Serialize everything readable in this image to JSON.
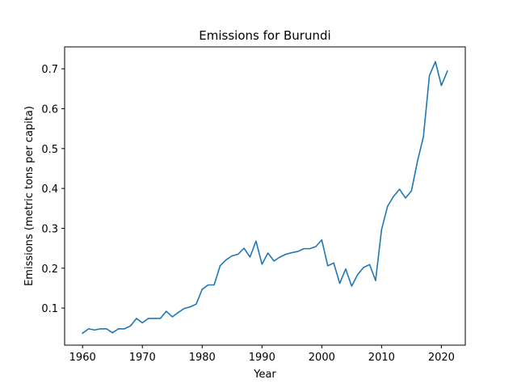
{
  "chart_data": {
    "type": "line",
    "title": "Emissions for Burundi",
    "xlabel": "Year",
    "ylabel": "Emissions (metric tons per capita)",
    "xlim": [
      1957,
      2024
    ],
    "ylim": [
      0.007,
      0.755
    ],
    "xticks": [
      1960,
      1970,
      1980,
      1990,
      2000,
      2010,
      2020
    ],
    "yticks": [
      0.1,
      0.2,
      0.3,
      0.4,
      0.5,
      0.6,
      0.7
    ],
    "grid": false,
    "series": [
      {
        "color": "#1f77b4",
        "x": [
          1960,
          1961,
          1962,
          1963,
          1964,
          1965,
          1966,
          1967,
          1968,
          1969,
          1970,
          1971,
          1972,
          1973,
          1974,
          1975,
          1976,
          1977,
          1978,
          1979,
          1980,
          1981,
          1982,
          1983,
          1984,
          1985,
          1986,
          1987,
          1988,
          1989,
          1990,
          1991,
          1992,
          1993,
          1994,
          1995,
          1996,
          1997,
          1998,
          1999,
          2000,
          2001,
          2002,
          2003,
          2004,
          2005,
          2006,
          2007,
          2008,
          2009,
          2010,
          2011,
          2012,
          2013,
          2014,
          2015,
          2016,
          2017,
          2018,
          2019,
          2020,
          2021
        ],
        "y": [
          0.037,
          0.048,
          0.045,
          0.048,
          0.048,
          0.038,
          0.048,
          0.048,
          0.055,
          0.074,
          0.063,
          0.074,
          0.074,
          0.074,
          0.092,
          0.078,
          0.089,
          0.099,
          0.103,
          0.11,
          0.147,
          0.158,
          0.158,
          0.206,
          0.221,
          0.231,
          0.235,
          0.25,
          0.228,
          0.268,
          0.21,
          0.238,
          0.218,
          0.228,
          0.235,
          0.239,
          0.242,
          0.249,
          0.249,
          0.254,
          0.271,
          0.206,
          0.213,
          0.162,
          0.198,
          0.155,
          0.184,
          0.202,
          0.209,
          0.169,
          0.297,
          0.355,
          0.38,
          0.398,
          0.376,
          0.394,
          0.468,
          0.53,
          0.683,
          0.718,
          0.658,
          0.694
        ]
      }
    ]
  }
}
